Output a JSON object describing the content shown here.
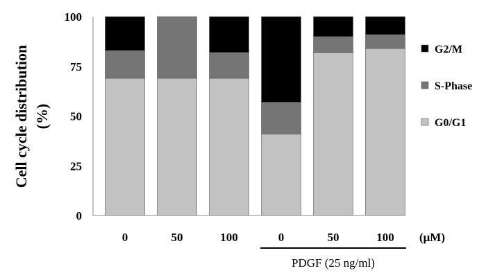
{
  "chart_data": {
    "type": "bar",
    "stacked": true,
    "categories": [
      "0",
      "50",
      "100",
      "0",
      "50",
      "100"
    ],
    "unit_label": "(μM)",
    "group_label": "PDGF (25 ng/ml)",
    "group_range": [
      3,
      5
    ],
    "ylabel_line1": "Cell cycle distribution",
    "ylabel_line2": "(%)",
    "ylim": [
      0,
      100
    ],
    "yticks": [
      "0",
      "25",
      "50",
      "75",
      "100"
    ],
    "series": [
      {
        "name": "G0/G1",
        "color": "#c2c2c2",
        "values": [
          69,
          69,
          69,
          41,
          82,
          84
        ]
      },
      {
        "name": "S-Phase",
        "color": "#757575",
        "values": [
          14,
          31,
          13,
          16,
          8,
          7
        ]
      },
      {
        "name": "G2/M",
        "color": "#000000",
        "values": [
          17,
          0,
          18,
          43,
          10,
          9
        ]
      }
    ],
    "legend_order": [
      "G2/M",
      "S-Phase",
      "G0/G1"
    ],
    "legend_position": "right"
  }
}
